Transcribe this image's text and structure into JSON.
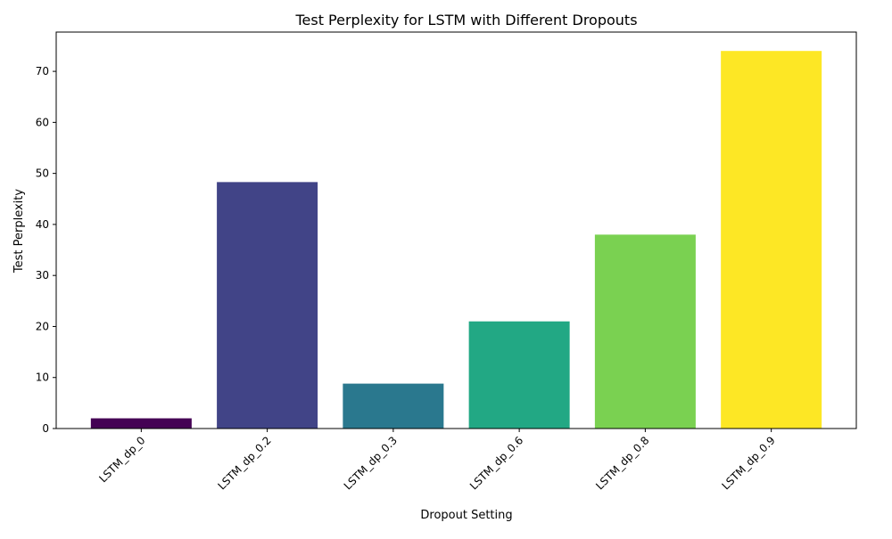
{
  "chart_data": {
    "type": "bar",
    "title": "Test Perplexity for LSTM with Different Dropouts",
    "xlabel": "Dropout Setting",
    "ylabel": "Test Perplexity",
    "categories": [
      "LSTM_dp_0",
      "LSTM_dp_0.2",
      "LSTM_dp_0.3",
      "LSTM_dp_0.6",
      "LSTM_dp_0.8",
      "LSTM_dp_0.9"
    ],
    "values": [
      2.0,
      48.3,
      8.8,
      21.0,
      38.0,
      74.0
    ],
    "colors": [
      "#440154",
      "#414487",
      "#2a788e",
      "#22a884",
      "#7ad151",
      "#fde725"
    ],
    "ylim": [
      0,
      77.7
    ],
    "yticks": [
      0,
      10,
      20,
      30,
      40,
      50,
      60,
      70
    ],
    "grid": false,
    "legend": false
  }
}
